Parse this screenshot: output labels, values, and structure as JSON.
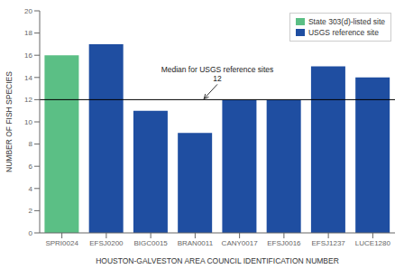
{
  "chart_data": {
    "type": "bar",
    "categories": [
      "SPRI0024",
      "EFSJ0200",
      "BIGC0015",
      "BRAN0011",
      "CANY0017",
      "EFSJ0016",
      "EFSJ1237",
      "LUCE1280"
    ],
    "values": [
      16,
      17,
      11,
      9,
      12,
      12,
      15,
      14
    ],
    "colors": [
      "#5bbf85",
      "#1f4ea1",
      "#1f4ea1",
      "#1f4ea1",
      "#1f4ea1",
      "#1f4ea1",
      "#1f4ea1",
      "#1f4ea1"
    ],
    "median_line": 12,
    "annotation": "Median for USGS reference sites\n12",
    "ylabel": "NUMBER OF FISH SPECIES",
    "xlabel": "HOUSTON-GALVESTON AREA COUNCIL IDENTIFICATION NUMBER",
    "ylim": [
      0,
      20
    ],
    "yticks": [
      0,
      2,
      4,
      6,
      8,
      10,
      12,
      14,
      16,
      18,
      20
    ],
    "legend": "upper right",
    "legend_entries": [
      {
        "label": "State 303(d)-listed site",
        "color": "#5bbf85"
      },
      {
        "label": "USGS reference site",
        "color": "#1f4ea1"
      }
    ],
    "grid": false
  }
}
